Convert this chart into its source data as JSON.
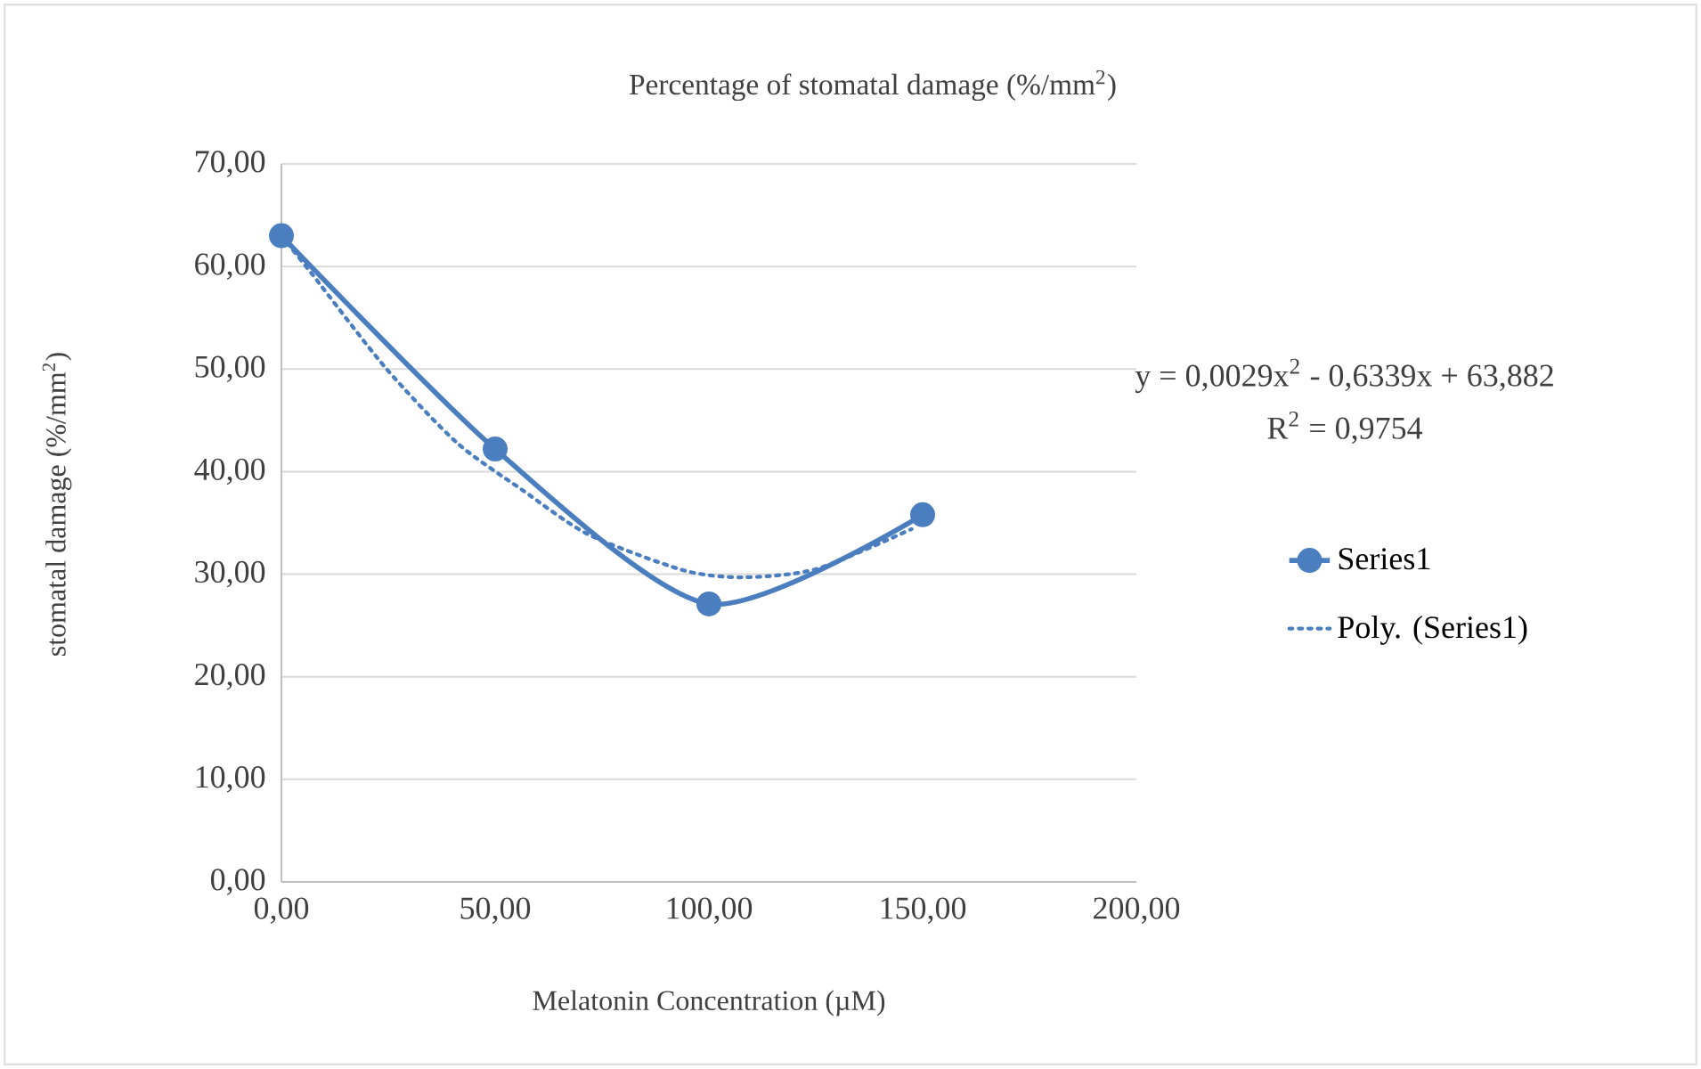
{
  "chart_data": {
    "type": "line",
    "title": "Percentage of stomatal damage (%/mm$^{2}$)",
    "xlabel": "Melatonin Concentration (µM)",
    "ylabel": "stomatal damage (%/mm$^{2}$)",
    "series": [
      {
        "name": "Series1",
        "color": "#4a7ebf",
        "x": [
          0,
          50,
          100,
          150
        ],
        "values": [
          63,
          42.2,
          27.1,
          35.8
        ],
        "marker": "circle",
        "line_style": "solid"
      },
      {
        "name": "Poly. (Series1)",
        "color": "#4a7ebf",
        "x": [
          0,
          7.1,
          24.4,
          41.1,
          56.4,
          71.7,
          93.9,
          107.8,
          125.1,
          147.4
        ],
        "values": [
          63,
          59.3,
          50.1,
          42.8,
          38.2,
          33.9,
          30.4,
          29.7,
          30.5,
          34.4
        ],
        "marker": "none",
        "line_style": "dotted"
      }
    ],
    "annotations": [
      "y = 0,0029x$^{2}$ - 0,6339x + 63,882",
      "R$^{2}$ = 0,9754"
    ],
    "xlim": [
      0,
      200
    ],
    "ylim": [
      0,
      70
    ],
    "xticks": [
      {
        "value": 0,
        "label": "0,00"
      },
      {
        "value": 50,
        "label": "50,00"
      },
      {
        "value": 100,
        "label": "100,00"
      },
      {
        "value": 150,
        "label": "150,00"
      },
      {
        "value": 200,
        "label": "200,00"
      }
    ],
    "yticks": [
      {
        "value": 0,
        "label": "0,00"
      },
      {
        "value": 10,
        "label": "10,00"
      },
      {
        "value": 20,
        "label": "20,00"
      },
      {
        "value": 30,
        "label": "30,00"
      },
      {
        "value": 40,
        "label": "40,00"
      },
      {
        "value": 50,
        "label": "50,00"
      },
      {
        "value": 60,
        "label": "60,00"
      },
      {
        "value": 70,
        "label": "70,00"
      }
    ],
    "grid": "y",
    "legend": "right"
  }
}
